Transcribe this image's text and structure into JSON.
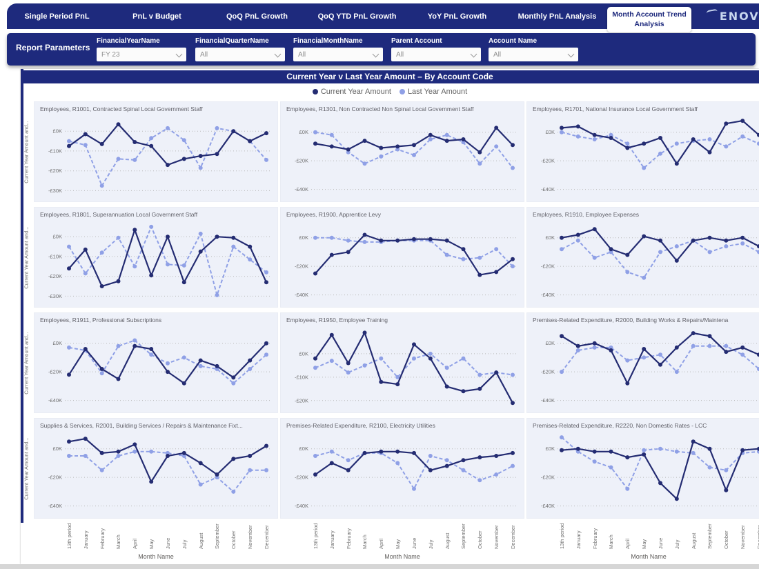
{
  "app": {
    "logo_text": "ENOVA",
    "logo_accent_color": "#d9a33a"
  },
  "nav": {
    "tabs": [
      {
        "label": "Single Period PnL",
        "active": false
      },
      {
        "label": "PnL v Budget",
        "active": false
      },
      {
        "label": "QoQ PnL Growth",
        "active": false
      },
      {
        "label": "QoQ YTD PnL Growth",
        "active": false
      },
      {
        "label": "YoY PnL Growth",
        "active": false
      },
      {
        "label": "Monthly PnL Analysis",
        "active": false
      },
      {
        "label": "Month Account Trend Analysis",
        "active": true
      }
    ]
  },
  "params": {
    "title": "Report Parameters",
    "filters": [
      {
        "label": "FinancialYearName",
        "value": "FY 23"
      },
      {
        "label": "FinancialQuarterName",
        "value": "All"
      },
      {
        "label": "FinancialMonthName",
        "value": "All"
      },
      {
        "label": "Parent Account",
        "value": "All"
      },
      {
        "label": "Account Name",
        "value": "All"
      }
    ]
  },
  "report": {
    "title": "Current Year v Last Year Amount – By Account Code"
  },
  "legend": {
    "items": [
      {
        "label": "Current Year Amount",
        "color": "#242c72"
      },
      {
        "label": "Last Year Amount",
        "color": "#8fa0e6"
      }
    ]
  },
  "colors": {
    "navy": "#1e2a7d",
    "chart_bg": "#eef1f9",
    "axis_text": "#6f6f6f",
    "current_year": "#242c72",
    "last_year": "#8fa0e6"
  },
  "chart_data": {
    "type": "line",
    "xlabel": "Month Name",
    "row_ylabel": "Current Year Amount and...",
    "series_names": [
      "Current Year Amount",
      "Last Year Amount"
    ],
    "categories": [
      "13th period",
      "January",
      "February",
      "March",
      "April",
      "May",
      "June",
      "July",
      "August",
      "September",
      "October",
      "November",
      "December"
    ],
    "values_unit": "GBP thousands",
    "small_multiples": [
      {
        "title": "Employees, R1001, Contracted Spinal Local Government Staff",
        "ylim": [
          -33,
          6
        ],
        "tick_values": [
          0,
          -10,
          -20,
          -30
        ],
        "tick_labels": [
          "£0K",
          "-£10K",
          "-£20K",
          "-£30K"
        ],
        "current_year": [
          -7.5,
          -1.5,
          -6.5,
          3.5,
          -5.5,
          -7.5,
          -17,
          -14,
          -12.5,
          -11.5,
          0,
          -5,
          -1
        ],
        "last_year": [
          -5,
          -7,
          -27.5,
          -14,
          -14.5,
          -3.5,
          1.5,
          -4.5,
          -18.5,
          1.5,
          0,
          -5,
          -14.5
        ]
      },
      {
        "title": "Employees, R1301, Non Contracted Non Spinal Local Government Staff",
        "ylim": [
          -45,
          9
        ],
        "tick_values": [
          0,
          -20,
          -40
        ],
        "tick_labels": [
          "£0K",
          "-£20K",
          "-£40K"
        ],
        "current_year": [
          -8,
          -10,
          -12,
          -6,
          -11,
          -10,
          -9,
          -2,
          -6,
          -5,
          -14,
          3,
          -9
        ],
        "last_year": [
          0,
          -2,
          -14,
          -22,
          -17,
          -12,
          -16,
          -5,
          -2,
          -7,
          -22,
          -10,
          -25
        ]
      },
      {
        "title": "Employees, R1701, National Insurance Local Government Staff",
        "ylim": [
          -45,
          9
        ],
        "tick_values": [
          0,
          -20,
          -40
        ],
        "tick_labels": [
          "£0K",
          "-£20K",
          "-£40K"
        ],
        "current_year": [
          3,
          4,
          -2,
          -4,
          -11,
          -8,
          -4,
          -22,
          -5,
          -14,
          6,
          8,
          -2
        ],
        "last_year": [
          0,
          -3,
          -5,
          -2,
          -8,
          -25,
          -15,
          -8,
          -6,
          -5,
          -10,
          -3,
          -8
        ]
      },
      {
        "title": "Employees, R1801, Superannuation Local Government Staff",
        "ylim": [
          -33,
          6
        ],
        "tick_values": [
          0,
          -10,
          -20,
          -30
        ],
        "tick_labels": [
          "£0K",
          "-£10K",
          "-£20K",
          "-£30K"
        ],
        "current_year": [
          -16,
          -6.5,
          -25,
          -22.5,
          3.5,
          -19.5,
          0,
          -23,
          -7.5,
          0,
          -0.5,
          -5,
          -23
        ],
        "last_year": [
          -5,
          -18.5,
          -8,
          -0.5,
          -15,
          5,
          -14,
          -14.5,
          1.5,
          -29.5,
          -5,
          -11.5,
          -18
        ]
      },
      {
        "title": "Employees, R1900, Apprentice Levy",
        "ylim": [
          -45,
          9
        ],
        "tick_values": [
          0,
          -20,
          -40
        ],
        "tick_labels": [
          "£0K",
          "-£20K",
          "-£40K"
        ],
        "current_year": [
          -25,
          -12,
          -10,
          2,
          -2,
          -2,
          -1,
          -1,
          -2,
          -8,
          -26,
          -24,
          -15
        ],
        "last_year": [
          0,
          0,
          -2,
          -3,
          -3,
          -2,
          -2,
          -2,
          -12,
          -15,
          -14,
          -8,
          -20
        ]
      },
      {
        "title": "Employees, R1910, Employee Expenses",
        "ylim": [
          -45,
          9
        ],
        "tick_values": [
          0,
          -20,
          -40
        ],
        "tick_labels": [
          "£0K",
          "-£20K",
          "-£40K"
        ],
        "current_year": [
          0,
          2,
          6,
          -8,
          -12,
          1,
          -2,
          -16,
          -2,
          0,
          -2,
          0,
          -6
        ],
        "last_year": [
          -8,
          -2,
          -14,
          -10,
          -24,
          -28,
          -10,
          -6,
          -2,
          -10,
          -6,
          -4,
          -10
        ]
      },
      {
        "title": "Employees, R1911, Professional Subscriptions",
        "ylim": [
          -45,
          9
        ],
        "tick_values": [
          0,
          -20,
          -40
        ],
        "tick_labels": [
          "£0K",
          "-£20K",
          "-£40K"
        ],
        "current_year": [
          -22,
          -4,
          -18,
          -25,
          -2,
          -4,
          -20,
          -28,
          -12,
          -16,
          -24,
          -12,
          0
        ],
        "last_year": [
          -3,
          -5,
          -21,
          -2,
          2,
          -8,
          -14,
          -10,
          -16,
          -18,
          -28,
          -18,
          -8
        ]
      },
      {
        "title": "Employees, R1950, Employee Training",
        "ylim": [
          -23,
          10
        ],
        "tick_values": [
          0,
          -10,
          -20
        ],
        "tick_labels": [
          "£0K",
          "-£10K",
          "-£20K"
        ],
        "current_year": [
          -2,
          8,
          -4,
          9,
          -12,
          -13,
          4,
          -2,
          -14,
          -16,
          -15,
          -8,
          -21
        ],
        "last_year": [
          -6,
          -3,
          -8,
          -5,
          -2,
          -10,
          -2,
          0,
          -6,
          -2,
          -9,
          -8,
          -9
        ]
      },
      {
        "title": "Premises-Related Expenditure, R2000, Building Works & Repairs/Maintena",
        "ylim": [
          -45,
          9
        ],
        "tick_values": [
          0,
          -20,
          -40
        ],
        "tick_labels": [
          "£0K",
          "-£20K",
          "-£40K"
        ],
        "current_year": [
          5,
          -2,
          0,
          -5,
          -28,
          -4,
          -15,
          -3,
          7,
          5,
          -6,
          -3,
          -8
        ],
        "last_year": [
          -20,
          -5,
          -3,
          -3,
          -12,
          -10,
          -8,
          -20,
          -2,
          -2,
          -2,
          -8,
          -18
        ]
      },
      {
        "title": "Supplies & Services, R2001, Building Services / Repairs & Maintenance Fixt...",
        "ylim": [
          -45,
          9
        ],
        "tick_values": [
          0,
          -20,
          -40
        ],
        "tick_labels": [
          "£0K",
          "-£20K",
          "-£40K"
        ],
        "current_year": [
          5,
          7,
          -3,
          -2,
          3,
          -23,
          -5,
          -3,
          -10,
          -18,
          -7,
          -5,
          2
        ],
        "last_year": [
          -5,
          -5,
          -15,
          -5,
          -2,
          -2,
          -3,
          -5,
          -25,
          -20,
          -30,
          -15,
          -15
        ]
      },
      {
        "title": "Premises-Related Expenditure, R2100, Electricity Utilities",
        "ylim": [
          -45,
          9
        ],
        "tick_values": [
          0,
          -20,
          -40
        ],
        "tick_labels": [
          "£0K",
          "-£20K",
          "-£40K"
        ],
        "current_year": [
          -18,
          -10,
          -15,
          -3,
          -2,
          -2,
          -3,
          -15,
          -12,
          -8,
          -6,
          -5,
          -3
        ],
        "last_year": [
          -5,
          -2,
          -8,
          -3,
          -3,
          -10,
          -28,
          -5,
          -8,
          -15,
          -22,
          -18,
          -12
        ]
      },
      {
        "title": "Premises-Related Expenditure, R2220, Non Domestic Rates - LCC",
        "ylim": [
          -45,
          9
        ],
        "tick_values": [
          0,
          -20,
          -40
        ],
        "tick_labels": [
          "£0K",
          "-£20K",
          "-£40K"
        ],
        "current_year": [
          -1,
          0,
          -2,
          -2,
          -6,
          -4,
          -24,
          -35,
          5,
          0,
          -29,
          -1,
          0
        ],
        "last_year": [
          8,
          -2,
          -9,
          -13,
          -28,
          -1,
          0,
          -2,
          -3,
          -13,
          -15,
          -3,
          -2
        ]
      }
    ]
  }
}
